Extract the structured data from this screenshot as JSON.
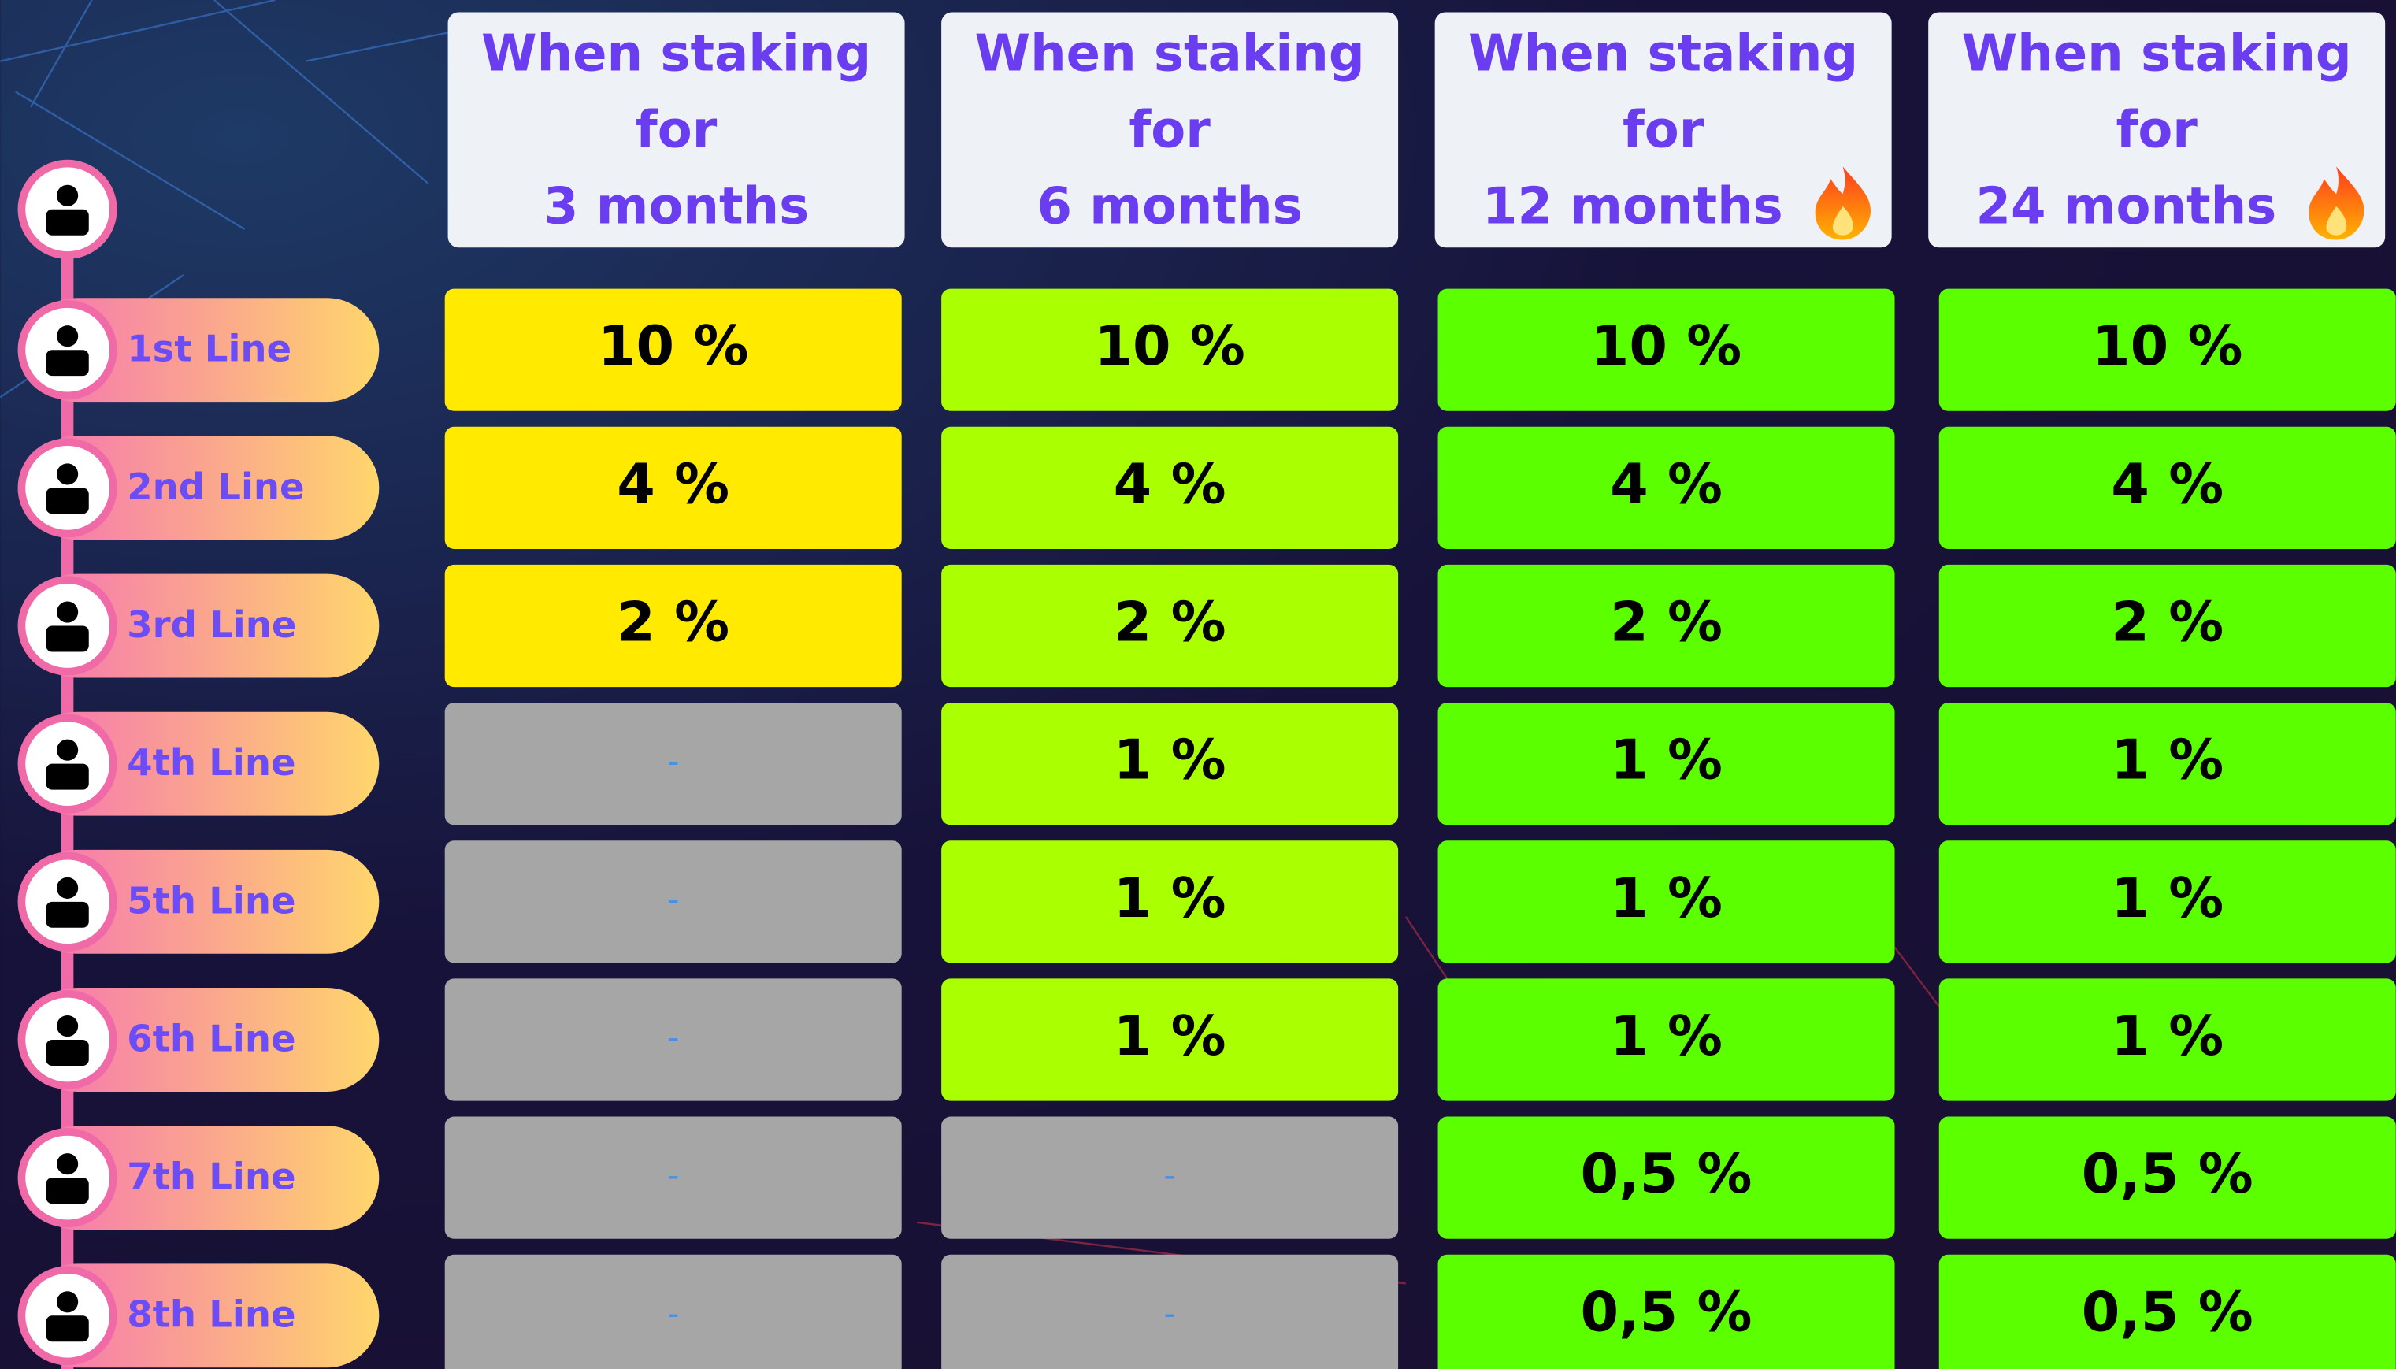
{
  "table": {
    "columns": [
      {
        "lines": [
          "When staking",
          "for",
          "3 months"
        ],
        "color": "#ffea00"
      },
      {
        "lines": [
          "When staking",
          "for",
          "6 months"
        ],
        "color": "#aaff00"
      },
      {
        "lines": [
          "When staking",
          "for",
          "12 months"
        ],
        "color": "#5cff00"
      },
      {
        "lines": [
          "When staking",
          "for",
          "24 months"
        ],
        "color": "#5cff00"
      }
    ],
    "empty_color": "#a6a6a6",
    "rows": [
      {
        "label": "1st Line",
        "cells": [
          "10 %",
          "10 %",
          "10 %",
          "10 %"
        ]
      },
      {
        "label": "2nd Line",
        "cells": [
          "4 %",
          "4 %",
          "4 %",
          "4 %"
        ]
      },
      {
        "label": "3rd Line",
        "cells": [
          "2 %",
          "2 %",
          "2 %",
          "2 %"
        ]
      },
      {
        "label": "4th Line",
        "cells": [
          "-",
          "1 %",
          "1 %",
          "1 %"
        ]
      },
      {
        "label": "5th Line",
        "cells": [
          "-",
          "1 %",
          "1 %",
          "1 %"
        ]
      },
      {
        "label": "6th Line",
        "cells": [
          "-",
          "1 %",
          "1 %",
          "1 %"
        ]
      },
      {
        "label": "7th Line",
        "cells": [
          "-",
          "-",
          "0,5 %",
          "0,5 %"
        ]
      },
      {
        "label": "8th Line",
        "cells": [
          "-",
          "-",
          "0,5 %",
          "0,5 %"
        ]
      }
    ]
  }
}
